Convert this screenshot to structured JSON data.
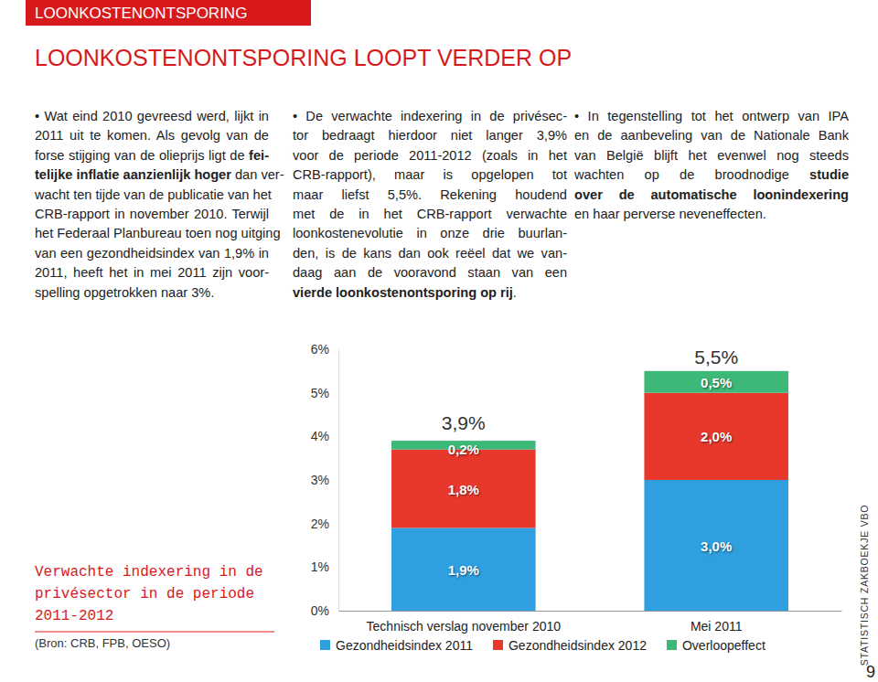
{
  "page": {
    "header": "LOONKOSTENONTSPORING",
    "title": "LOONKOSTENONTSPORING LOOPT VERDER OP",
    "columns": [
      [
        [
          "• Wat eind 2010 gevreesd werd, lijkt in"
        ],
        [
          "2011 uit te komen. Als gevolg van de"
        ],
        [
          "forse stijging van de olieprijs ligt de ",
          {
            "text": "fei-",
            "bold": true
          }
        ],
        [
          {
            "text": "telijke inflatie aanzienlijk hoger",
            "bold": true
          },
          " dan ver-"
        ],
        [
          "wacht ten tijde van de publicatie van het"
        ],
        [
          "CRB-rapport in november 2010. Terwijl"
        ],
        [
          "het Federaal Planbureau toen nog uitging"
        ],
        [
          "van een gezondheidsindex van 1,9% in"
        ],
        [
          "2011, heeft het in mei 2011 zijn voor-"
        ],
        [
          "spelling opgetrokken naar 3%."
        ]
      ],
      [
        [
          "• De verwachte indexering in de privésec-"
        ],
        [
          "tor bedraagt hierdoor niet langer 3,9%"
        ],
        [
          "voor de periode 2011-2012 (zoals in het"
        ],
        [
          "CRB-rapport), maar is opgelopen tot"
        ],
        [
          "maar liefst 5,5%. Rekening houdend"
        ],
        [
          "met de in het CRB-rapport verwachte"
        ],
        [
          "loonkostenevolutie in onze drie buurlan-"
        ],
        [
          "den, is de kans dan ook reëel dat we van-"
        ],
        [
          "daag aan de vooravond staan van een"
        ],
        [
          {
            "text": "vierde loonkostenontsporing op rij",
            "bold": true
          },
          "."
        ]
      ],
      [
        [
          "• In tegenstelling tot het ontwerp van IPA"
        ],
        [
          "en de aanbeveling van de Nationale Bank"
        ],
        [
          "van België blijft het evenwel nog steeds"
        ],
        [
          "wachten op de broodnodige ",
          {
            "text": "studie",
            "bold": true
          }
        ],
        [
          {
            "text": "over de automatische loonindexering",
            "bold": true
          }
        ],
        [
          "en haar perverse neveneffecten."
        ]
      ]
    ],
    "side_text": "STATISTISCH ZAKBOEKJE VBO",
    "page_number": "9"
  },
  "chart_data": {
    "type": "bar",
    "title": "Verwachte indexering in de privésector in de periode 2011-2012",
    "subtitle": "(Bron: CRB, FPB, OESO)",
    "categories": [
      "Technisch verslag november 2010",
      "Mei 2011"
    ],
    "series": [
      {
        "name": "Gezondheidsindex 2011",
        "color": "#2f9fe0",
        "values": [
          1.9,
          3.0
        ],
        "value_labels": [
          "1,9%",
          "3,0%"
        ]
      },
      {
        "name": "Gezondheidsindex 2012",
        "color": "#e8382b",
        "values": [
          1.8,
          2.0
        ],
        "value_labels": [
          "1,8%",
          "2,0%"
        ]
      },
      {
        "name": "Overloopeffect",
        "color": "#3cb878",
        "values": [
          0.2,
          0.5
        ],
        "value_labels": [
          "0,2%",
          "0,5%"
        ]
      }
    ],
    "total_labels": [
      "3,9%",
      "5,5%"
    ],
    "ylim": [
      0,
      6
    ],
    "yticks": [
      {
        "value": 0,
        "label": "0%"
      },
      {
        "value": 1,
        "label": "1%"
      },
      {
        "value": 2,
        "label": "2%"
      },
      {
        "value": 3,
        "label": "3%"
      },
      {
        "value": 4,
        "label": "4%"
      },
      {
        "value": 5,
        "label": "5%"
      },
      {
        "value": 6,
        "label": "6%"
      }
    ],
    "stacked": true,
    "data_labels": true,
    "legend": "bottom",
    "grid": false
  }
}
